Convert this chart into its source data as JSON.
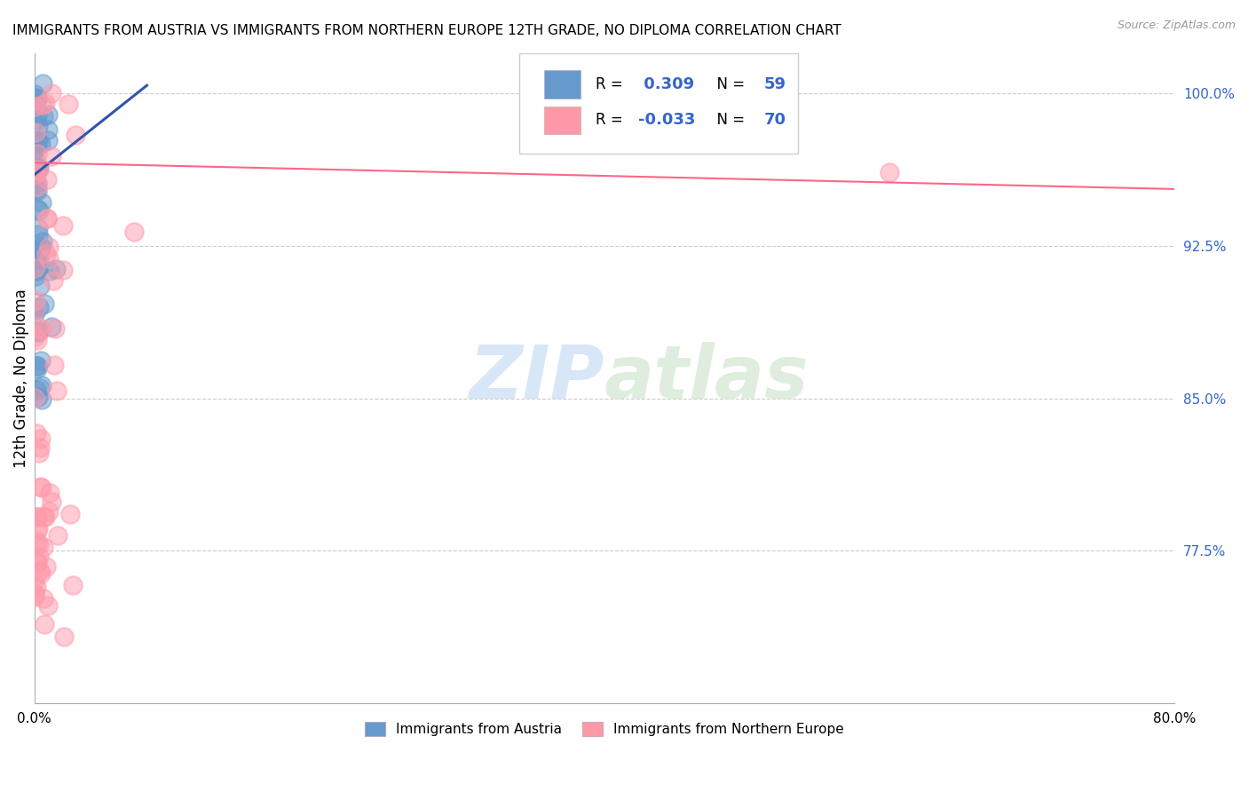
{
  "title": "IMMIGRANTS FROM AUSTRIA VS IMMIGRANTS FROM NORTHERN EUROPE 12TH GRADE, NO DIPLOMA CORRELATION CHART",
  "source": "Source: ZipAtlas.com",
  "ylabel": "12th Grade, No Diploma",
  "ytick_labels": [
    "100.0%",
    "92.5%",
    "85.0%",
    "77.5%"
  ],
  "ytick_positions": [
    1.0,
    0.925,
    0.85,
    0.775
  ],
  "xlim": [
    0.0,
    0.8
  ],
  "ylim": [
    0.7,
    1.02
  ],
  "blue_R": 0.309,
  "blue_N": 59,
  "pink_R": -0.033,
  "pink_N": 70,
  "blue_color": "#6699CC",
  "pink_color": "#FF99AA",
  "blue_line_color": "#3355AA",
  "pink_line_color": "#FF6688",
  "watermark_zip": "ZIP",
  "watermark_atlas": "atlas",
  "legend_label_blue": "Immigrants from Austria",
  "legend_label_pink": "Immigrants from Northern Europe"
}
